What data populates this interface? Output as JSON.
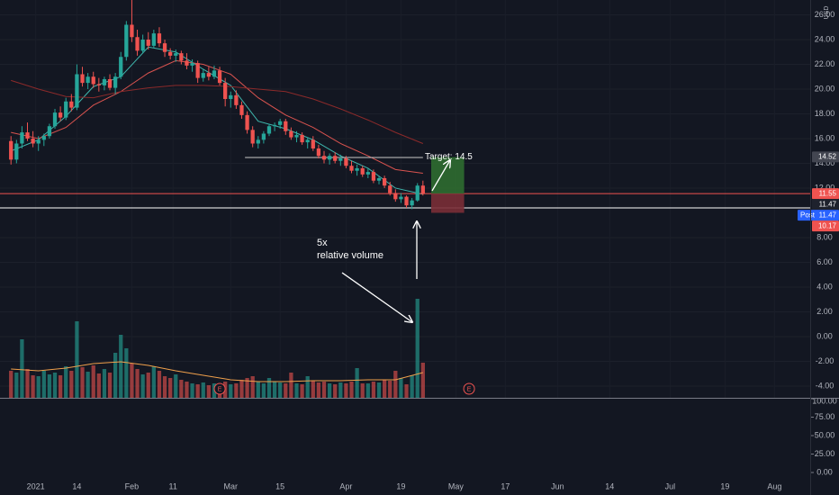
{
  "chart_data": {
    "type": "candlestick",
    "currency": "USD",
    "xlim": [
      -2,
      145.5
    ],
    "xticks": [
      {
        "value": 4.5,
        "label": "2021"
      },
      {
        "value": 12,
        "label": "14"
      },
      {
        "value": 22,
        "label": "Feb"
      },
      {
        "value": 29.5,
        "label": "11"
      },
      {
        "value": 40,
        "label": "Mar"
      },
      {
        "value": 49,
        "label": "15"
      },
      {
        "value": 61,
        "label": "Apr"
      },
      {
        "value": 71,
        "label": "19"
      },
      {
        "value": 81,
        "label": "May"
      },
      {
        "value": 90,
        "label": "17"
      },
      {
        "value": 99.5,
        "label": "Jun"
      },
      {
        "value": 109,
        "label": "14"
      },
      {
        "value": 120,
        "label": "Jul"
      },
      {
        "value": 130,
        "label": "19"
      },
      {
        "value": 139,
        "label": "Aug"
      }
    ],
    "ylim": [
      -4.95,
      27.2
    ],
    "yticks": [
      {
        "value": -4,
        "label": "-4.00"
      },
      {
        "value": -2,
        "label": "-2.00"
      },
      {
        "value": 0,
        "label": "0.00"
      },
      {
        "value": 2,
        "label": "2.00"
      },
      {
        "value": 4,
        "label": "4.00"
      },
      {
        "value": 6,
        "label": "6.00"
      },
      {
        "value": 8,
        "label": "8.00"
      },
      {
        "value": 12,
        "label": "12.00"
      },
      {
        "value": 14,
        "label": "14.00"
      },
      {
        "value": 16,
        "label": "16.00"
      },
      {
        "value": 18,
        "label": "18.00"
      },
      {
        "value": 20,
        "label": "20.00"
      },
      {
        "value": 22,
        "label": "22.00"
      },
      {
        "value": 24,
        "label": "24.00"
      },
      {
        "value": 26,
        "label": "26.00"
      }
    ],
    "up_color": "#26a69a",
    "down_color": "#ef5350",
    "candles": [
      [
        15.8,
        16.2,
        13.9,
        14.3
      ],
      [
        14.3,
        15.9,
        14.0,
        15.6
      ],
      [
        15.6,
        17.0,
        15.2,
        16.5
      ],
      [
        16.5,
        17.3,
        15.8,
        16.0
      ],
      [
        16.0,
        16.6,
        15.3,
        15.6
      ],
      [
        15.6,
        16.2,
        15.0,
        15.9
      ],
      [
        15.9,
        16.4,
        15.4,
        16.2
      ],
      [
        16.2,
        17.2,
        16.0,
        17.0
      ],
      [
        17.0,
        18.4,
        16.8,
        18.1
      ],
      [
        18.1,
        18.6,
        17.4,
        17.7
      ],
      [
        17.7,
        19.3,
        17.5,
        19.0
      ],
      [
        19.0,
        19.6,
        18.2,
        18.5
      ],
      [
        18.5,
        22.0,
        18.3,
        21.2
      ],
      [
        21.2,
        21.8,
        20.2,
        20.5
      ],
      [
        20.5,
        21.3,
        20.0,
        21.0
      ],
      [
        21.0,
        21.4,
        20.1,
        20.4
      ],
      [
        20.4,
        20.9,
        19.8,
        20.3
      ],
      [
        20.3,
        21.0,
        19.9,
        20.8
      ],
      [
        20.8,
        21.2,
        19.9,
        20.1
      ],
      [
        20.1,
        21.3,
        19.6,
        21.0
      ],
      [
        21.0,
        23.0,
        20.8,
        22.6
      ],
      [
        22.6,
        25.5,
        22.3,
        25.2
      ],
      [
        25.2,
        27.5,
        23.8,
        24.2
      ],
      [
        24.2,
        24.8,
        22.7,
        23.1
      ],
      [
        23.1,
        24.4,
        22.9,
        24.0
      ],
      [
        24.0,
        24.6,
        23.2,
        23.5
      ],
      [
        23.5,
        24.8,
        23.3,
        24.5
      ],
      [
        24.5,
        25.0,
        23.4,
        23.7
      ],
      [
        23.7,
        24.0,
        22.6,
        23.0
      ],
      [
        23.0,
        23.3,
        22.4,
        22.7
      ],
      [
        22.7,
        23.2,
        22.2,
        22.9
      ],
      [
        22.9,
        23.1,
        22.0,
        22.3
      ],
      [
        22.3,
        22.9,
        21.6,
        21.9
      ],
      [
        21.9,
        22.4,
        21.4,
        22.1
      ],
      [
        22.1,
        22.3,
        20.5,
        20.9
      ],
      [
        20.9,
        21.6,
        20.6,
        21.3
      ],
      [
        21.3,
        21.8,
        20.7,
        21.0
      ],
      [
        21.0,
        21.9,
        20.8,
        21.5
      ],
      [
        21.5,
        21.8,
        20.3,
        20.5
      ],
      [
        20.5,
        20.9,
        18.6,
        19.2
      ],
      [
        19.2,
        19.8,
        18.5,
        19.5
      ],
      [
        19.5,
        19.9,
        18.4,
        18.7
      ],
      [
        18.7,
        19.0,
        17.6,
        17.9
      ],
      [
        17.9,
        18.2,
        16.4,
        16.7
      ],
      [
        16.7,
        17.0,
        15.3,
        15.6
      ],
      [
        15.6,
        16.2,
        15.2,
        15.9
      ],
      [
        15.9,
        16.6,
        15.6,
        16.4
      ],
      [
        16.4,
        17.2,
        16.2,
        17.0
      ],
      [
        17.0,
        17.3,
        16.6,
        17.1
      ],
      [
        17.1,
        17.6,
        16.8,
        17.4
      ],
      [
        17.4,
        17.6,
        16.3,
        16.6
      ],
      [
        16.6,
        16.9,
        15.9,
        16.1
      ],
      [
        16.1,
        16.6,
        15.7,
        16.3
      ],
      [
        16.3,
        16.5,
        15.5,
        15.7
      ],
      [
        15.7,
        16.1,
        15.2,
        15.9
      ],
      [
        15.9,
        16.2,
        15.0,
        15.2
      ],
      [
        15.2,
        15.5,
        14.4,
        14.6
      ],
      [
        14.6,
        15.0,
        14.0,
        14.3
      ],
      [
        14.3,
        14.8,
        13.9,
        14.6
      ],
      [
        14.6,
        14.9,
        14.0,
        14.2
      ],
      [
        14.2,
        14.7,
        13.8,
        14.4
      ],
      [
        14.4,
        14.6,
        13.6,
        13.8
      ],
      [
        13.8,
        14.2,
        13.2,
        13.4
      ],
      [
        13.4,
        13.9,
        13.0,
        13.6
      ],
      [
        13.6,
        13.8,
        12.9,
        13.1
      ],
      [
        13.1,
        13.6,
        12.8,
        13.3
      ],
      [
        13.3,
        13.5,
        12.4,
        12.6
      ],
      [
        12.6,
        13.0,
        12.3,
        12.8
      ],
      [
        12.8,
        13.0,
        12.0,
        12.2
      ],
      [
        12.2,
        12.5,
        11.4,
        11.6
      ],
      [
        11.6,
        11.9,
        10.9,
        11.1
      ],
      [
        11.1,
        11.6,
        10.8,
        11.3
      ],
      [
        11.3,
        11.4,
        10.4,
        10.6
      ],
      [
        10.6,
        11.2,
        10.3,
        11.0
      ],
      [
        11.0,
        12.4,
        10.9,
        12.2
      ],
      [
        12.2,
        12.6,
        11.4,
        11.55
      ]
    ],
    "volume": [
      3,
      2.8,
      6.5,
      3.2,
      2.5,
      2.4,
      3,
      2.6,
      2.8,
      2.5,
      3.5,
      3,
      8.5,
      3.4,
      2.9,
      3.6,
      2.7,
      3.2,
      2.8,
      5,
      7,
      5.5,
      3.8,
      3.2,
      2.6,
      2.8,
      3.5,
      3,
      2.4,
      2.2,
      2.6,
      2,
      1.8,
      1.6,
      1.5,
      1.7,
      1.4,
      1.6,
      1.5,
      1.8,
      1.5,
      1.6,
      2,
      2.2,
      2.4,
      1.8,
      1.6,
      2.2,
      1.8,
      1.7,
      1.6,
      2.8,
      1.6,
      1.5,
      2.4,
      1.9,
      1.7,
      1.8,
      1.6,
      1.5,
      1.7,
      1.6,
      1.8,
      3.3,
      1.6,
      1.6,
      1.8,
      1.7,
      2,
      1.9,
      3,
      2.2,
      1.5,
      2.5,
      11,
      3.9
    ],
    "lines_x": [
      0,
      5,
      10,
      15,
      20,
      25,
      30,
      35,
      40,
      45,
      50,
      55,
      60,
      65,
      70,
      75
    ],
    "lines": [
      {
        "color": "#3fb6ad",
        "values": [
          15.0,
          15.9,
          17.8,
          20.2,
          21.0,
          23.4,
          23.0,
          21.6,
          20.3,
          17.4,
          16.8,
          15.9,
          14.6,
          13.6,
          12.0,
          11.5
        ]
      },
      {
        "color": "#d9534f",
        "values": [
          16.5,
          16.0,
          16.9,
          18.7,
          19.8,
          21.3,
          22.3,
          22.0,
          21.2,
          19.3,
          17.9,
          16.9,
          15.6,
          14.6,
          13.5,
          13.2
        ]
      },
      {
        "color": "#8b2a2a",
        "values": [
          20.7,
          20.0,
          19.4,
          19.3,
          19.8,
          20.1,
          20.3,
          20.3,
          20.2,
          20.0,
          19.8,
          19.2,
          18.4,
          17.5,
          16.5,
          15.6
        ]
      }
    ],
    "volume_ma": {
      "color": "#f0a04b",
      "values": [
        3.2,
        3.0,
        3.3,
        3.8,
        4.0,
        3.6,
        3.0,
        2.5,
        2.0,
        1.8,
        1.8,
        1.9,
        1.9,
        2.0,
        2.0,
        2.8
      ]
    },
    "levels": [
      {
        "value": 14.47,
        "from": 42.6,
        "to": 75,
        "color": "#c8c8c8"
      },
      {
        "value": 10.4,
        "color": "#ffffff"
      },
      {
        "value": 11.55,
        "color": "#ef5350"
      }
    ],
    "position": {
      "entry": 11.55,
      "target": 14.5,
      "stop": 10.0,
      "from": 76.5,
      "to": 82.5,
      "label": "Target: 14.5"
    },
    "price_tags": [
      {
        "value": 14.52,
        "label": "14.52",
        "color": "#434651"
      },
      {
        "value": 11.55,
        "label": "11.55",
        "color": "#ef5350"
      },
      {
        "value": 11.47,
        "label": "11.47",
        "color": "#1e222d"
      },
      {
        "value": 11.47,
        "label": "11.47",
        "prefix": "Post",
        "color": "#2962ff"
      },
      {
        "value": 10.17,
        "label": "10.17",
        "color": "#ef5350"
      }
    ],
    "annotation": [
      "5x",
      "relative volume"
    ],
    "earnings": [
      {
        "x": 38,
        "label": "E"
      },
      {
        "x": 83.4,
        "label": "E"
      }
    ],
    "lower_pane": {
      "ylim": [
        -7.3,
        100
      ],
      "yticks": [
        {
          "value": 100,
          "label": "100.00"
        },
        {
          "value": 75,
          "label": "75.00"
        },
        {
          "value": 50,
          "label": "50.00"
        },
        {
          "value": 25,
          "label": "25.00"
        },
        {
          "value": 0,
          "label": "0.00"
        }
      ]
    }
  }
}
